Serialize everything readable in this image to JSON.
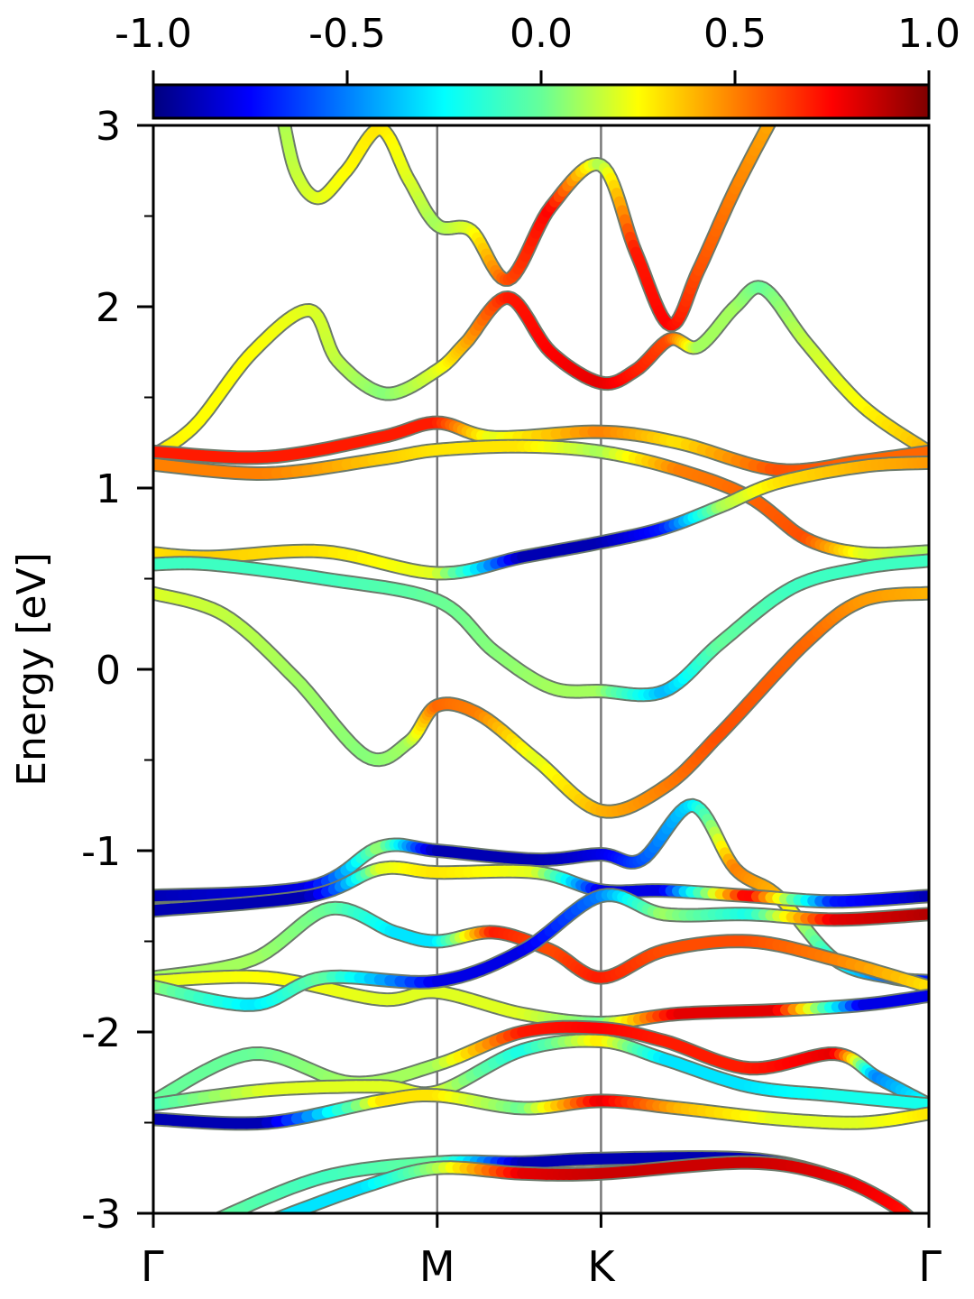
{
  "chart_data": {
    "type": "line",
    "ylabel": "Energy [eV]",
    "xlabel": "",
    "ylim": [
      -3,
      3
    ],
    "yticks": [
      "3",
      "2",
      "1",
      "0",
      "-1",
      "-2",
      "-3"
    ],
    "ytick_values": [
      3,
      2,
      1,
      0,
      -1,
      -2,
      -3
    ],
    "yminor": [
      2.5,
      1.5,
      0.5,
      -0.5,
      -1.5,
      -2.5
    ],
    "kpath": {
      "labels": [
        "Γ",
        "M",
        "K",
        "Γ"
      ],
      "positions": [
        0,
        1,
        1.577,
        2.732
      ]
    },
    "colorbar": {
      "range": [
        -1.0,
        1.0
      ],
      "tick_labels": [
        "-1.0",
        "-0.5",
        "0.0",
        "0.5",
        "1.0"
      ],
      "tick_values": [
        -1.0,
        -0.5,
        0.0,
        0.5,
        1.0
      ],
      "colormap": "jet"
    },
    "bands": [
      {
        "points": [
          [
            0.45,
            3.1
          ],
          [
            0.5,
            2.75
          ],
          [
            0.58,
            2.6
          ],
          [
            0.68,
            2.75
          ],
          [
            0.8,
            2.98
          ],
          [
            0.9,
            2.7
          ],
          [
            1.0,
            2.45
          ],
          [
            1.12,
            2.42
          ],
          [
            1.25,
            2.15
          ],
          [
            1.4,
            2.55
          ],
          [
            1.577,
            2.78
          ],
          [
            1.7,
            2.3
          ],
          [
            1.82,
            1.9
          ],
          [
            1.92,
            2.2
          ],
          [
            2.05,
            2.65
          ],
          [
            2.2,
            3.1
          ]
        ],
        "proj": [
          0.1,
          0.15,
          0.2,
          0.25,
          0.3,
          0.2,
          0.1,
          0.2,
          0.6,
          0.75,
          0.1,
          0.7,
          0.75,
          0.6,
          0.5,
          0.4
        ]
      },
      {
        "points": [
          [
            0,
            1.18
          ],
          [
            0.15,
            1.35
          ],
          [
            0.35,
            1.75
          ],
          [
            0.55,
            1.98
          ],
          [
            0.65,
            1.7
          ],
          [
            0.82,
            1.52
          ],
          [
            1.0,
            1.65
          ],
          [
            1.1,
            1.8
          ],
          [
            1.25,
            2.05
          ],
          [
            1.4,
            1.75
          ],
          [
            1.577,
            1.58
          ],
          [
            1.7,
            1.65
          ],
          [
            1.82,
            1.82
          ],
          [
            1.92,
            1.78
          ],
          [
            2.05,
            2.0
          ],
          [
            2.15,
            2.1
          ],
          [
            2.3,
            1.8
          ],
          [
            2.5,
            1.45
          ],
          [
            2.732,
            1.2
          ]
        ],
        "proj": [
          0.3,
          0.25,
          0.25,
          0.2,
          0.15,
          0.05,
          0.2,
          0.4,
          0.7,
          0.75,
          0.8,
          0.7,
          0.6,
          0.1,
          0.1,
          0.0,
          0.15,
          0.25,
          0.4
        ]
      },
      {
        "points": [
          [
            0,
            1.2
          ],
          [
            0.4,
            1.17
          ],
          [
            0.8,
            1.28
          ],
          [
            1.0,
            1.36
          ],
          [
            1.2,
            1.28
          ],
          [
            1.577,
            1.31
          ],
          [
            1.85,
            1.25
          ],
          [
            2.2,
            1.1
          ],
          [
            2.5,
            1.15
          ],
          [
            2.732,
            1.2
          ]
        ],
        "proj": [
          0.7,
          0.7,
          0.7,
          0.7,
          0.2,
          0.5,
          0.3,
          0.6,
          0.55,
          0.55
        ]
      },
      {
        "points": [
          [
            0,
            1.13
          ],
          [
            0.4,
            1.08
          ],
          [
            0.8,
            1.16
          ],
          [
            1.0,
            1.21
          ],
          [
            1.3,
            1.23
          ],
          [
            1.577,
            1.2
          ],
          [
            1.85,
            1.1
          ],
          [
            2.1,
            0.95
          ],
          [
            2.3,
            0.72
          ],
          [
            2.5,
            0.64
          ],
          [
            2.732,
            0.65
          ]
        ],
        "proj": [
          0.5,
          0.5,
          0.35,
          0.3,
          0.3,
          0.1,
          0.5,
          0.55,
          0.6,
          0.2,
          0.1
        ]
      },
      {
        "points": [
          [
            0,
            0.64
          ],
          [
            0.2,
            0.62
          ],
          [
            0.6,
            0.65
          ],
          [
            1.0,
            0.53
          ],
          [
            1.3,
            0.62
          ],
          [
            1.577,
            0.7
          ],
          [
            1.8,
            0.78
          ],
          [
            2.0,
            0.9
          ],
          [
            2.2,
            1.03
          ],
          [
            2.5,
            1.12
          ],
          [
            2.732,
            1.14
          ]
        ],
        "proj": [
          0.3,
          0.35,
          0.3,
          0.2,
          -0.9,
          -0.9,
          -0.7,
          0.1,
          0.3,
          0.4,
          0.45
        ]
      },
      {
        "points": [
          [
            0,
            0.58
          ],
          [
            0.2,
            0.58
          ],
          [
            0.6,
            0.5
          ],
          [
            1.0,
            0.38
          ],
          [
            1.2,
            0.1
          ],
          [
            1.4,
            -0.1
          ],
          [
            1.577,
            -0.12
          ],
          [
            1.8,
            -0.12
          ],
          [
            2.0,
            0.15
          ],
          [
            2.25,
            0.45
          ],
          [
            2.5,
            0.56
          ],
          [
            2.732,
            0.6
          ]
        ],
        "proj": [
          -0.1,
          -0.1,
          -0.1,
          0.0,
          0.05,
          0.1,
          0.1,
          -0.4,
          0.0,
          -0.1,
          -0.1,
          -0.1
        ]
      },
      {
        "points": [
          [
            0,
            0.42
          ],
          [
            0.25,
            0.3
          ],
          [
            0.5,
            -0.05
          ],
          [
            0.75,
            -0.48
          ],
          [
            0.9,
            -0.4
          ],
          [
            1.0,
            -0.2
          ],
          [
            1.15,
            -0.25
          ],
          [
            1.35,
            -0.5
          ],
          [
            1.577,
            -0.78
          ],
          [
            1.8,
            -0.65
          ],
          [
            2.0,
            -0.35
          ],
          [
            2.3,
            0.15
          ],
          [
            2.5,
            0.38
          ],
          [
            2.732,
            0.42
          ]
        ],
        "proj": [
          0.2,
          0.15,
          0.1,
          0.05,
          0.1,
          0.55,
          0.5,
          0.2,
          0.4,
          0.5,
          0.6,
          0.55,
          0.45,
          0.4
        ]
      },
      {
        "points": [
          [
            0,
            -1.25
          ],
          [
            0.55,
            -1.2
          ],
          [
            0.8,
            -0.98
          ],
          [
            1.0,
            -1.0
          ],
          [
            1.35,
            -1.05
          ],
          [
            1.577,
            -1.02
          ],
          [
            1.72,
            -1.05
          ],
          [
            1.9,
            -0.75
          ],
          [
            2.05,
            -1.1
          ],
          [
            2.2,
            -1.25
          ],
          [
            2.4,
            -1.6
          ],
          [
            2.6,
            -1.7
          ],
          [
            2.732,
            -1.72
          ]
        ],
        "proj": [
          -0.9,
          -0.8,
          0.1,
          -0.9,
          -0.9,
          -0.8,
          -0.6,
          -0.3,
          0.5,
          0.4,
          -0.2,
          -0.6,
          -0.7
        ]
      },
      {
        "points": [
          [
            0,
            -1.33
          ],
          [
            0.55,
            -1.25
          ],
          [
            0.8,
            -1.1
          ],
          [
            1.0,
            -1.12
          ],
          [
            1.35,
            -1.12
          ],
          [
            1.577,
            -1.22
          ],
          [
            1.8,
            -1.22
          ],
          [
            2.1,
            -1.25
          ],
          [
            2.4,
            -1.28
          ],
          [
            2.732,
            -1.25
          ]
        ],
        "proj": [
          -0.9,
          -0.9,
          0.2,
          0.3,
          0.2,
          -0.8,
          -0.8,
          0.8,
          -0.7,
          -0.9
        ]
      },
      {
        "points": [
          [
            0,
            -1.7
          ],
          [
            0.35,
            -1.6
          ],
          [
            0.62,
            -1.32
          ],
          [
            0.85,
            -1.45
          ],
          [
            1.0,
            -1.5
          ],
          [
            1.2,
            -1.45
          ],
          [
            1.4,
            -1.55
          ],
          [
            1.577,
            -1.7
          ],
          [
            1.8,
            -1.55
          ],
          [
            2.1,
            -1.5
          ],
          [
            2.4,
            -1.6
          ],
          [
            2.732,
            -1.75
          ]
        ],
        "proj": [
          0.1,
          0.1,
          0.0,
          -0.3,
          -0.3,
          0.7,
          0.6,
          0.7,
          0.6,
          0.6,
          0.5,
          0.3
        ]
      },
      {
        "points": [
          [
            0,
            -1.72
          ],
          [
            0.4,
            -1.7
          ],
          [
            0.8,
            -1.82
          ],
          [
            1.0,
            -1.78
          ],
          [
            1.3,
            -1.9
          ],
          [
            1.577,
            -1.95
          ],
          [
            1.85,
            -1.9
          ],
          [
            2.2,
            -1.88
          ],
          [
            2.5,
            -1.85
          ],
          [
            2.732,
            -1.8
          ]
        ],
        "proj": [
          0.2,
          0.25,
          0.2,
          0.2,
          0.2,
          0.0,
          0.8,
          0.8,
          -0.8,
          -0.8
        ]
      },
      {
        "points": [
          [
            0,
            -1.75
          ],
          [
            0.35,
            -1.85
          ],
          [
            0.6,
            -1.7
          ],
          [
            1.0,
            -1.72
          ],
          [
            1.3,
            -1.55
          ],
          [
            1.577,
            -1.25
          ],
          [
            1.8,
            -1.35
          ],
          [
            2.1,
            -1.35
          ],
          [
            2.4,
            -1.38
          ],
          [
            2.732,
            -1.35
          ]
        ],
        "proj": [
          0.1,
          -0.3,
          0.0,
          -0.8,
          -0.8,
          -0.5,
          0.1,
          -0.2,
          0.8,
          0.9
        ]
      },
      {
        "points": [
          [
            0,
            -2.38
          ],
          [
            0.35,
            -2.12
          ],
          [
            0.7,
            -2.28
          ],
          [
            1.0,
            -2.18
          ],
          [
            1.3,
            -2.0
          ],
          [
            1.577,
            -1.98
          ],
          [
            1.8,
            -2.05
          ],
          [
            2.1,
            -2.2
          ],
          [
            2.4,
            -2.12
          ],
          [
            2.55,
            -2.25
          ],
          [
            2.732,
            -2.4
          ]
        ],
        "proj": [
          0.0,
          0.0,
          0.1,
          0.1,
          0.7,
          0.75,
          0.7,
          0.7,
          0.8,
          -0.5,
          -0.2
        ]
      },
      {
        "points": [
          [
            0,
            -2.4
          ],
          [
            0.4,
            -2.32
          ],
          [
            0.8,
            -2.3
          ],
          [
            1.0,
            -2.33
          ],
          [
            1.3,
            -2.1
          ],
          [
            1.577,
            -2.05
          ],
          [
            1.8,
            -2.15
          ],
          [
            2.1,
            -2.3
          ],
          [
            2.4,
            -2.35
          ],
          [
            2.732,
            -2.4
          ]
        ],
        "proj": [
          -0.1,
          0.2,
          0.2,
          0.2,
          -0.2,
          0.3,
          -0.3,
          -0.3,
          -0.2,
          -0.2
        ]
      },
      {
        "points": [
          [
            0,
            -2.48
          ],
          [
            0.4,
            -2.5
          ],
          [
            0.8,
            -2.38
          ],
          [
            1.0,
            -2.35
          ],
          [
            1.3,
            -2.42
          ],
          [
            1.577,
            -2.38
          ],
          [
            1.85,
            -2.42
          ],
          [
            2.2,
            -2.48
          ],
          [
            2.5,
            -2.5
          ],
          [
            2.732,
            -2.45
          ]
        ],
        "proj": [
          -0.9,
          -0.9,
          0.3,
          0.3,
          0.0,
          0.8,
          0.4,
          0.2,
          0.2,
          0.3
        ]
      },
      {
        "points": [
          [
            0.2,
            -3.05
          ],
          [
            0.6,
            -2.8
          ],
          [
            1.0,
            -2.72
          ],
          [
            1.3,
            -2.72
          ],
          [
            1.577,
            -2.7
          ],
          [
            2.1,
            -2.7
          ],
          [
            2.4,
            -2.8
          ],
          [
            2.6,
            -2.95
          ],
          [
            2.65,
            -3.05
          ]
        ],
        "proj": [
          0.0,
          -0.1,
          0.0,
          -0.9,
          -0.9,
          -0.9,
          -0.8,
          -0.7,
          -0.7
        ]
      },
      {
        "points": [
          [
            0.4,
            -3.05
          ],
          [
            0.75,
            -2.85
          ],
          [
            1.0,
            -2.75
          ],
          [
            1.3,
            -2.78
          ],
          [
            1.577,
            -2.78
          ],
          [
            2.1,
            -2.72
          ],
          [
            2.4,
            -2.8
          ],
          [
            2.6,
            -2.95
          ],
          [
            2.68,
            -3.05
          ]
        ],
        "proj": [
          -0.3,
          -0.3,
          0.1,
          0.8,
          0.85,
          0.85,
          0.8,
          0.75,
          0.7
        ]
      }
    ]
  }
}
